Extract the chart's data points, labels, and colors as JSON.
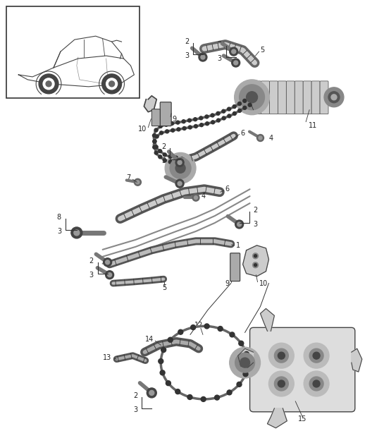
{
  "bg": "#ffffff",
  "fig_w": 5.45,
  "fig_h": 6.28,
  "dpi": 100,
  "gray1": "#222222",
  "gray2": "#555555",
  "gray3": "#888888",
  "gray4": "#bbbbbb",
  "gray5": "#dddddd"
}
